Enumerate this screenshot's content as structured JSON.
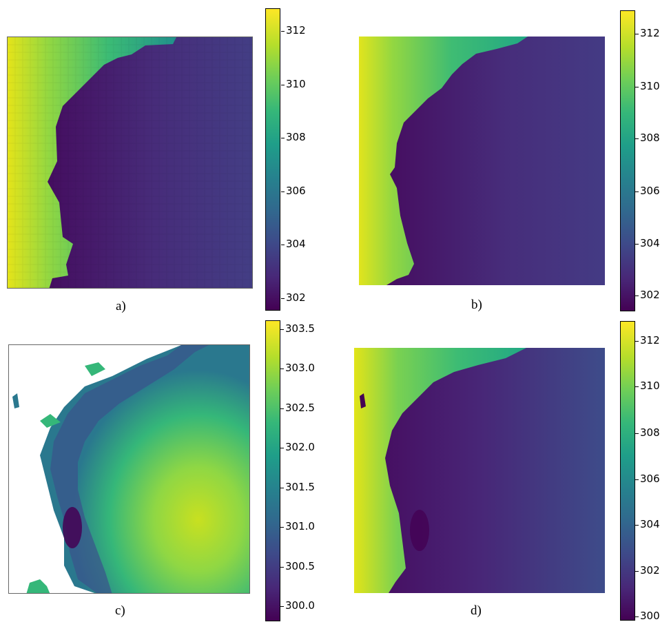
{
  "chart_data": [
    {
      "type": "heatmap",
      "panel_label": "a)",
      "colormap": "viridis",
      "colorbar": {
        "vmin": 301.6,
        "vmax": 312.9,
        "ticks": [
          "302",
          "304",
          "306",
          "308",
          "310",
          "312"
        ]
      },
      "description_values": {
        "warm_coast_max": 312.5,
        "open_water_min": 301.8,
        "east_interior": 303.5
      }
    },
    {
      "type": "heatmap",
      "panel_label": "b)",
      "colormap": "viridis",
      "colorbar": {
        "vmin": 301.3,
        "vmax": 312.8,
        "ticks": [
          "302",
          "304",
          "306",
          "308",
          "310",
          "312"
        ]
      },
      "description_values": {
        "warm_coast_max": 312.0,
        "open_water_min": 301.6,
        "east_interior": 303.4
      }
    },
    {
      "type": "heatmap",
      "panel_label": "c)",
      "colormap": "viridis",
      "colorbar": {
        "vmin": 299.8,
        "vmax": 303.6,
        "ticks": [
          "300.0",
          "300.5",
          "301.0",
          "301.5",
          "302.0",
          "302.5",
          "303.0",
          "303.5"
        ]
      },
      "description_values": {
        "nearshore_min": 299.9,
        "offshore_max": 303.4
      }
    },
    {
      "type": "heatmap",
      "panel_label": "d)",
      "colormap": "viridis",
      "colorbar": {
        "vmin": 299.8,
        "vmax": 312.8,
        "ticks": [
          "300",
          "302",
          "304",
          "306",
          "308",
          "310",
          "312"
        ]
      },
      "description_values": {
        "warm_coast_max": 312.3,
        "open_water_min": 300.3,
        "east_interior": 302.5
      }
    }
  ],
  "colors": {
    "viridis_low": "#440154",
    "viridis_mid": "#21918c",
    "viridis_high": "#fde725"
  }
}
